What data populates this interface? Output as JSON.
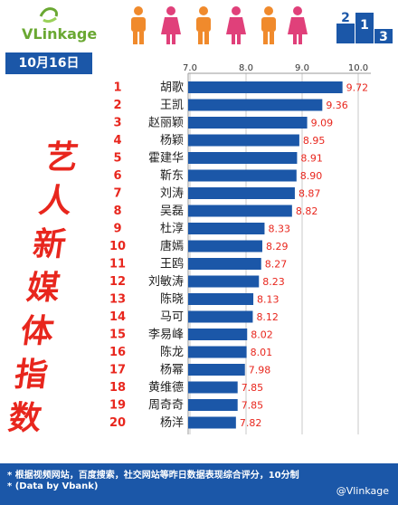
{
  "header": {
    "logo_text": "VLinkage",
    "podium_digits": [
      "2",
      "1",
      "3"
    ]
  },
  "date_badge": "10月16日",
  "side_title": [
    "艺",
    "人",
    "新",
    "媒",
    "体",
    "指",
    "数"
  ],
  "colors": {
    "bar": "#1b57a8",
    "rank": "#e8261d",
    "value": "#e8261d",
    "title": "#e8261d",
    "badge": "#1b57a8"
  },
  "chart_data": {
    "type": "bar",
    "orientation": "horizontal",
    "title": "",
    "xlabel": "",
    "ylabel": "",
    "xlim": [
      6.5,
      10.0
    ],
    "x_ticks": [
      "7.0",
      "8.0",
      "9.0",
      "10.0"
    ],
    "x_tick_values": [
      7.0,
      8.0,
      9.0,
      10.0
    ],
    "grid": true,
    "ranks": [
      "1",
      "2",
      "3",
      "4",
      "5",
      "6",
      "7",
      "8",
      "9",
      "10",
      "11",
      "12",
      "13",
      "14",
      "15",
      "16",
      "17",
      "18",
      "19",
      "20"
    ],
    "categories": [
      "胡歌",
      "王凯",
      "赵丽颖",
      "杨颖",
      "霍建华",
      "靳东",
      "刘涛",
      "吴磊",
      "杜淳",
      "唐嫣",
      "王鸥",
      "刘敏涛",
      "陈晓",
      "马可",
      "李易峰",
      "陈龙",
      "杨幂",
      "黄维德",
      "周奇奇",
      "杨洋"
    ],
    "values": [
      9.72,
      9.36,
      9.09,
      8.95,
      8.91,
      8.9,
      8.87,
      8.82,
      8.33,
      8.29,
      8.27,
      8.23,
      8.13,
      8.12,
      8.02,
      8.01,
      7.98,
      7.85,
      7.85,
      7.82
    ],
    "value_labels": [
      "9.72",
      "9.36",
      "9.09",
      "8.95",
      "8.91",
      "8.90",
      "8.87",
      "8.82",
      "8.33",
      "8.29",
      "8.27",
      "8.23",
      "8.13",
      "8.12",
      "8.02",
      "8.01",
      "7.98",
      "7.85",
      "7.85",
      "7.82"
    ]
  },
  "footer": {
    "note1": "* 根据视频网站，百度搜索，社交网站等昨日数据表现综合评分，10分制",
    "note2": "* (Data by Vbank)",
    "watermark": "@Vlinkage"
  }
}
